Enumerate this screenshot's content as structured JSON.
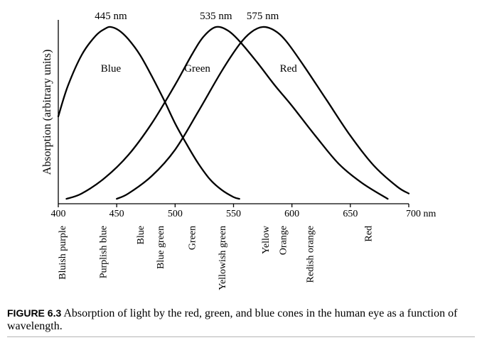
{
  "chart_data": {
    "type": "line",
    "ylabel": "Absorption (arbitrary units)",
    "xlim": [
      400,
      700
    ],
    "x_ticks": [
      "400",
      "450",
      "500",
      "550",
      "600",
      "650",
      "700 nm"
    ],
    "x_tick_values": [
      400,
      450,
      500,
      550,
      600,
      650,
      700
    ],
    "y_axis_ticks": false,
    "grid": false,
    "series": [
      {
        "name": "Blue",
        "peak_label": "445 nm",
        "peak_nm": 445,
        "x": [
          400,
          408,
          420,
          432,
          440,
          445,
          452,
          460,
          470,
          480,
          490,
          500,
          510,
          520,
          530,
          540,
          550,
          555
        ],
        "y": [
          0.49,
          0.66,
          0.84,
          0.95,
          0.99,
          1.0,
          0.98,
          0.93,
          0.84,
          0.72,
          0.59,
          0.45,
          0.33,
          0.22,
          0.13,
          0.07,
          0.03,
          0.02
        ]
      },
      {
        "name": "Green",
        "peak_label": "535 nm",
        "peak_nm": 535,
        "x": [
          407,
          420,
          440,
          460,
          480,
          500,
          515,
          525,
          535,
          545,
          555,
          570,
          585,
          600,
          620,
          640,
          660,
          682
        ],
        "y": [
          0.02,
          0.05,
          0.14,
          0.27,
          0.45,
          0.67,
          0.85,
          0.95,
          1.0,
          0.98,
          0.92,
          0.8,
          0.67,
          0.55,
          0.38,
          0.22,
          0.11,
          0.02
        ]
      },
      {
        "name": "Red",
        "peak_label": "575 nm",
        "peak_nm": 575,
        "x": [
          450,
          460,
          480,
          500,
          520,
          540,
          555,
          565,
          575,
          585,
          595,
          610,
          630,
          650,
          670,
          690,
          700
        ],
        "y": [
          0.02,
          0.05,
          0.15,
          0.3,
          0.52,
          0.75,
          0.9,
          0.97,
          1.0,
          0.98,
          0.92,
          0.78,
          0.58,
          0.38,
          0.21,
          0.09,
          0.05
        ]
      }
    ],
    "color_bands": [
      {
        "label": "Bluish purple",
        "nm": 403
      },
      {
        "label": "Purplish blue",
        "nm": 438
      },
      {
        "label": "Blue",
        "nm": 470
      },
      {
        "label": "Blue green",
        "nm": 487
      },
      {
        "label": "Green",
        "nm": 514
      },
      {
        "label": "Yellowish green",
        "nm": 540
      },
      {
        "label": "Yellow",
        "nm": 577
      },
      {
        "label": "Orange",
        "nm": 592
      },
      {
        "label": "Redish orange",
        "nm": 615
      },
      {
        "label": "Red",
        "nm": 665
      }
    ]
  },
  "caption": {
    "figure_number": "FIGURE 6.3",
    "text": "Absorption of light by the red, green, and blue cones in the human eye as a function of wavelength."
  }
}
